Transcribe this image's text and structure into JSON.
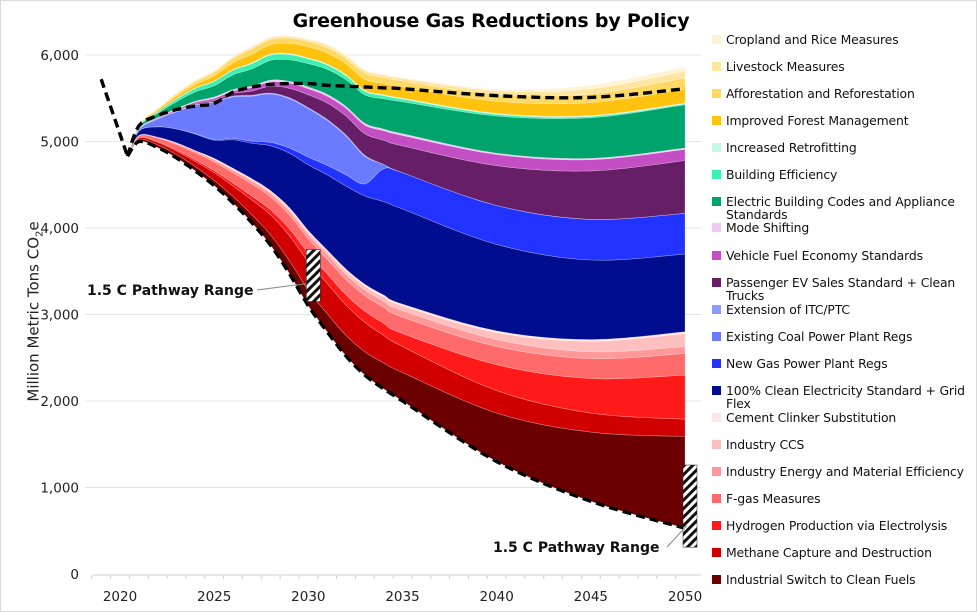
{
  "chart_data": {
    "type": "area",
    "stacked": true,
    "title": "Greenhouse Gas Reductions by Policy",
    "xlabel": "",
    "ylabel": "Million Metric Tons CO2e",
    "ylabel_parts": {
      "main": "Million Metric Tons CO",
      "sub": "2",
      "tail": "e"
    },
    "xlim": [
      2019,
      2050
    ],
    "ylim": [
      0,
      6000
    ],
    "x_ticks": [
      2020,
      2025,
      2030,
      2035,
      2040,
      2045,
      2050
    ],
    "x_tick_labels": [
      "2020",
      "2025",
      "2030",
      "2035",
      "2040",
      "2045",
      "2050"
    ],
    "y_ticks": [
      0,
      1000,
      2000,
      3000,
      4000,
      5000,
      6000
    ],
    "y_tick_labels": [
      "0",
      "1,000",
      "2,000",
      "3,000",
      "4,000",
      "5,000",
      "6,000"
    ],
    "grid": "horizontal",
    "legend_position": "right",
    "x": [
      2020.4,
      2021,
      2022,
      2023,
      2024,
      2025,
      2026,
      2027,
      2028,
      2029,
      2030,
      2031,
      2032,
      2033,
      2034,
      2035,
      2040,
      2045,
      2050
    ],
    "base_emissions": [
      4830,
      5000,
      4930,
      4810,
      4660,
      4490,
      4290,
      4060,
      3800,
      3470,
      3100,
      2800,
      2520,
      2300,
      2140,
      2000,
      1300,
      840,
      530
    ],
    "reference_line": {
      "name": "Historical / reference (dashed)",
      "x": [
        2019,
        2020.4
      ],
      "y": [
        5720,
        4830
      ]
    },
    "baseline_line": {
      "name": "Baseline emissions (dashed top)",
      "x": [
        2020.4,
        2021,
        2022,
        2023,
        2024,
        2025,
        2026,
        2027,
        2028,
        2029,
        2030,
        2031,
        2032,
        2033,
        2034,
        2035,
        2040,
        2045,
        2050
      ],
      "y": [
        4830,
        5180,
        5300,
        5370,
        5410,
        5440,
        5570,
        5630,
        5660,
        5670,
        5670,
        5650,
        5640,
        5630,
        5620,
        5610,
        5530,
        5510,
        5610
      ]
    },
    "series": [
      {
        "name": "Industrial Switch to Clean Fuels",
        "color": "#6b0000",
        "values": [
          0,
          20,
          30,
          40,
          50,
          60,
          75,
          95,
          120,
          150,
          180,
          210,
          240,
          270,
          300,
          330,
          560,
          800,
          1060
        ]
      },
      {
        "name": "Methane Capture and Destruction",
        "color": "#d00000",
        "values": [
          0,
          20,
          30,
          40,
          60,
          90,
          120,
          170,
          230,
          290,
          330,
          350,
          350,
          340,
          320,
          300,
          260,
          220,
          200
        ]
      },
      {
        "name": "Hydrogen Production via Electrolysis",
        "color": "#ff1a1a",
        "values": [
          0,
          5,
          10,
          15,
          20,
          25,
          35,
          45,
          60,
          80,
          100,
          110,
          120,
          130,
          140,
          150,
          300,
          400,
          510
        ]
      },
      {
        "name": "F-gas Measures",
        "color": "#ff6b6b",
        "values": [
          0,
          20,
          40,
          60,
          80,
          100,
          120,
          140,
          150,
          160,
          165,
          170,
          175,
          180,
          185,
          190,
          210,
          230,
          250
        ]
      },
      {
        "name": "Industry Energy and Material Efficiency",
        "color": "#ff9999",
        "values": [
          0,
          5,
          10,
          15,
          20,
          25,
          30,
          35,
          40,
          45,
          50,
          55,
          60,
          65,
          70,
          75,
          80,
          80,
          80
        ]
      },
      {
        "name": "Industry CCS",
        "color": "#ffbfbf",
        "values": [
          0,
          0,
          0,
          0,
          0,
          5,
          10,
          15,
          20,
          25,
          30,
          35,
          40,
          45,
          50,
          55,
          80,
          120,
          150
        ]
      },
      {
        "name": "Cement Clinker Substitution",
        "color": "#ffe5e5",
        "values": [
          0,
          0,
          0,
          5,
          5,
          10,
          10,
          10,
          10,
          15,
          15,
          15,
          20,
          20,
          20,
          20,
          20,
          20,
          20
        ]
      },
      {
        "name": "100% Clean Electricity Standard + Grid Flex",
        "color": "#000d8f",
        "values": [
          0,
          50,
          120,
          160,
          190,
          210,
          330,
          410,
          520,
          630,
          760,
          870,
          960,
          1020,
          1080,
          1100,
          1000,
          920,
          900
        ]
      },
      {
        "name": "New Gas Power Plant Regs",
        "color": "#2233ff",
        "values": [
          0,
          0,
          0,
          0,
          5,
          10,
          15,
          25,
          40,
          60,
          90,
          110,
          130,
          140,
          380,
          420,
          450,
          470,
          470
        ]
      },
      {
        "name": "Existing Coal Power Plant Regs",
        "color": "#6b7bff",
        "values": [
          0,
          20,
          90,
          200,
          330,
          430,
          480,
          520,
          560,
          570,
          560,
          520,
          450,
          320,
          50,
          0,
          0,
          0,
          0
        ]
      },
      {
        "name": "Extension of ITC/PTC",
        "color": "#8f9bff",
        "values": [
          0,
          0,
          0,
          5,
          5,
          5,
          10,
          10,
          10,
          10,
          10,
          10,
          10,
          10,
          0,
          0,
          0,
          0,
          0
        ]
      },
      {
        "name": "Passenger EV Sales Standard + Clean Trucks",
        "color": "#661f66",
        "values": [
          0,
          0,
          0,
          5,
          10,
          15,
          30,
          50,
          80,
          110,
          150,
          190,
          220,
          250,
          280,
          310,
          460,
          560,
          610
        ]
      },
      {
        "name": "Vehicle Fuel Economy Standards",
        "color": "#c44fc4",
        "values": [
          0,
          5,
          10,
          15,
          20,
          25,
          30,
          40,
          50,
          60,
          70,
          80,
          90,
          100,
          110,
          120,
          130,
          130,
          130
        ]
      },
      {
        "name": "Mode Shifting",
        "color": "#f0c8f0",
        "values": [
          0,
          5,
          5,
          10,
          10,
          15,
          15,
          15,
          20,
          20,
          20,
          20,
          20,
          20,
          20,
          20,
          15,
          15,
          15
        ]
      },
      {
        "name": "Electric Building Codes and Appliance Standards",
        "color": "#00a36b",
        "values": [
          0,
          20,
          50,
          80,
          110,
          130,
          170,
          200,
          230,
          250,
          270,
          290,
          310,
          330,
          350,
          370,
          430,
          470,
          500
        ]
      },
      {
        "name": "Building Efficiency",
        "color": "#3ef0b0",
        "values": [
          0,
          10,
          20,
          30,
          40,
          50,
          55,
          60,
          60,
          60,
          55,
          50,
          45,
          40,
          35,
          30,
          20,
          15,
          10
        ]
      },
      {
        "name": "Increased Retrofitting",
        "color": "#c8f7e8",
        "values": [
          0,
          0,
          0,
          5,
          5,
          5,
          5,
          10,
          10,
          10,
          10,
          10,
          10,
          10,
          10,
          10,
          10,
          10,
          10
        ]
      },
      {
        "name": "Improved Forest Management",
        "color": "#ffc20e",
        "values": [
          0,
          10,
          20,
          30,
          40,
          60,
          80,
          100,
          110,
          120,
          130,
          130,
          130,
          130,
          130,
          130,
          140,
          150,
          160
        ]
      },
      {
        "name": "Afforestation and Reforestation",
        "color": "#ffd966",
        "values": [
          0,
          5,
          10,
          20,
          30,
          40,
          50,
          60,
          60,
          60,
          60,
          60,
          60,
          70,
          70,
          70,
          80,
          100,
          130
        ]
      },
      {
        "name": "Livestock Measures",
        "color": "#ffe6a0",
        "values": [
          0,
          5,
          10,
          15,
          15,
          15,
          20,
          20,
          20,
          20,
          20,
          30,
          30,
          30,
          30,
          30,
          40,
          60,
          80
        ]
      },
      {
        "name": "Cropland and Rice Measures",
        "color": "#fff3d6",
        "values": [
          0,
          0,
          0,
          5,
          5,
          5,
          5,
          10,
          10,
          10,
          10,
          10,
          10,
          10,
          10,
          10,
          20,
          40,
          50
        ]
      }
    ],
    "annotations": [
      {
        "text": "1.5 C Pathway Range",
        "year": 2030,
        "range": [
          3150,
          3750
        ]
      },
      {
        "text": "1.5 C Pathway Range",
        "year": 2050,
        "range": [
          310,
          1260
        ]
      }
    ]
  },
  "legend": {
    "items": [
      {
        "label": "Cropland and Rice Measures",
        "color": "#fff3d6"
      },
      {
        "label": "Livestock Measures",
        "color": "#ffe6a0"
      },
      {
        "label": "Afforestation and Reforestation",
        "color": "#ffd966"
      },
      {
        "label": "Improved Forest Management",
        "color": "#ffc20e"
      },
      {
        "label": "Increased Retrofitting",
        "color": "#c8f7e8"
      },
      {
        "label": "Building Efficiency",
        "color": "#3ef0b0"
      },
      {
        "label": "Electric Building Codes and Appliance Standards",
        "color": "#00a36b"
      },
      {
        "label": "Mode Shifting",
        "color": "#f0c8f0"
      },
      {
        "label": "Vehicle Fuel Economy Standards",
        "color": "#c44fc4"
      },
      {
        "label": "Passenger EV Sales Standard + Clean Trucks",
        "color": "#661f66"
      },
      {
        "label": "Extension of ITC/PTC",
        "color": "#8f9bff"
      },
      {
        "label": "Existing Coal Power Plant Regs",
        "color": "#6b7bff"
      },
      {
        "label": "New Gas Power Plant Regs",
        "color": "#2233ff"
      },
      {
        "label": "100% Clean Electricity Standard + Grid Flex",
        "color": "#000d8f"
      },
      {
        "label": "Cement Clinker Substitution",
        "color": "#ffe5e5"
      },
      {
        "label": "Industry CCS",
        "color": "#ffbfbf"
      },
      {
        "label": "Industry Energy and Material Efficiency",
        "color": "#ff9999"
      },
      {
        "label": "F-gas Measures",
        "color": "#ff6b6b"
      },
      {
        "label": "Hydrogen Production via Electrolysis",
        "color": "#ff1a1a"
      },
      {
        "label": "Methane Capture and Destruction",
        "color": "#d00000"
      },
      {
        "label": "Industrial Switch to Clean Fuels",
        "color": "#6b0000"
      }
    ]
  }
}
